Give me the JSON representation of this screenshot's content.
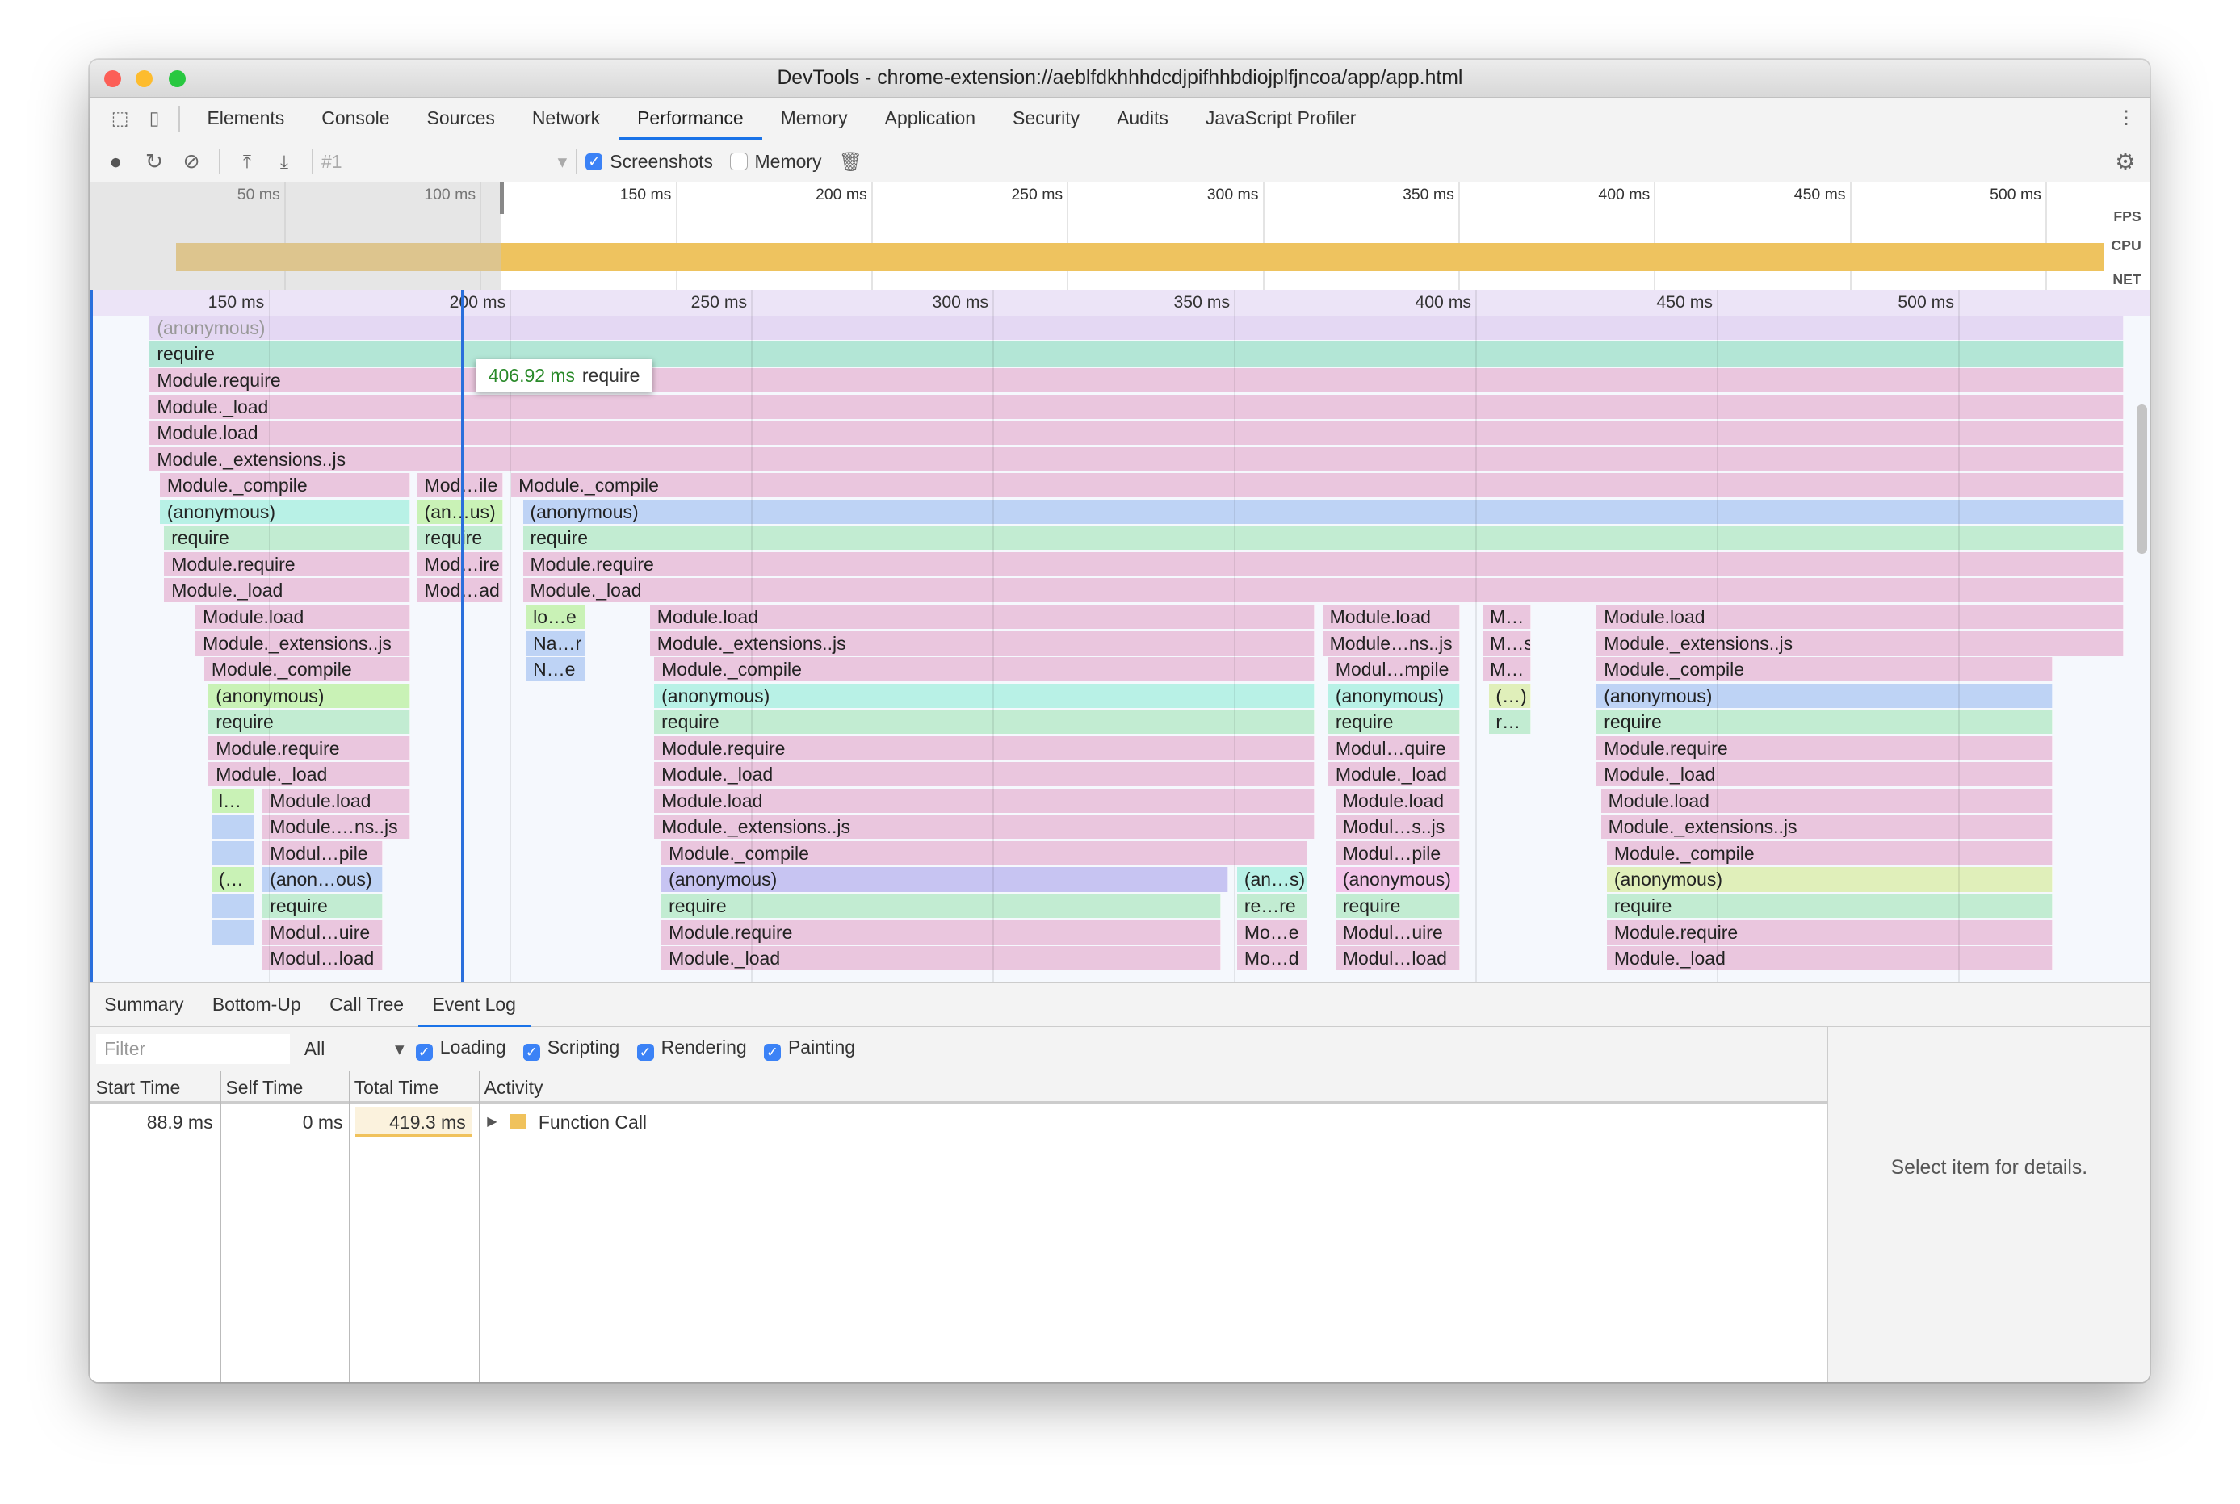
{
  "window": {
    "title": "DevTools - chrome-extension://aeblfdkhhhdcdjpifhhbdiojplfjncoa/app/app.html"
  },
  "tabs": [
    "Elements",
    "Console",
    "Sources",
    "Network",
    "Performance",
    "Memory",
    "Application",
    "Security",
    "Audits",
    "JavaScript Profiler"
  ],
  "active_tab": "Performance",
  "toolbar": {
    "recording": "#1",
    "screenshots_label": "Screenshots",
    "screenshots_checked": true,
    "memory_label": "Memory",
    "memory_checked": false
  },
  "overview": {
    "ticks": [
      "50 ms",
      "100 ms",
      "150 ms",
      "200 ms",
      "250 ms",
      "300 ms",
      "350 ms",
      "400 ms",
      "450 ms",
      "500 ms"
    ],
    "tick_ms": [
      50,
      100,
      150,
      200,
      250,
      300,
      350,
      400,
      450,
      500
    ],
    "lanes": [
      "FPS",
      "CPU",
      "NET"
    ],
    "selection_start_ms": 114,
    "cpu_color": "#eec35f"
  },
  "flame": {
    "ticks": [
      "150 ms",
      "200 ms",
      "250 ms",
      "300 ms",
      "350 ms",
      "400 ms",
      "450 ms",
      "500 ms"
    ],
    "tick_ms": [
      150,
      200,
      250,
      300,
      350,
      400,
      450,
      500
    ],
    "view_ms": [
      114,
      535
    ],
    "cursor": {
      "time": "406.92 ms",
      "name": "require",
      "at_ms": 189.9
    },
    "colors": {
      "pink": "#eac6de",
      "teal": "#b3e6d6",
      "green": "#c2ecd2",
      "cyan": "#b8f1e6",
      "blue": "#bed3f5",
      "lime": "#c9f2b6",
      "purple": "#c7c4f2",
      "magenta": "#f2c3e8",
      "yellow": "#e0efba",
      "faded": "#e4d8f3"
    },
    "rows": [
      [
        [
          "(anonymous)",
          125.4,
          534.3,
          "faded"
        ]
      ],
      [
        [
          "require",
          125.4,
          534.3,
          "teal"
        ]
      ],
      [
        [
          "Module.require",
          125.4,
          534.3,
          "pink"
        ]
      ],
      [
        [
          "Module._load",
          125.4,
          534.3,
          "pink"
        ]
      ],
      [
        [
          "Module.load",
          125.4,
          534.3,
          "pink"
        ]
      ],
      [
        [
          "Module._extensions..js",
          125.4,
          534.3,
          "pink"
        ]
      ],
      [
        [
          "Module._compile",
          127.5,
          179.3,
          "pink"
        ],
        [
          "Mod…ile",
          180.8,
          198.5,
          "pink"
        ],
        [
          "Module._compile",
          200.3,
          534.3,
          "pink"
        ]
      ],
      [
        [
          "(anonymous)",
          127.5,
          179.3,
          "cyan"
        ],
        [
          "(an…us)",
          180.8,
          198.5,
          "lime"
        ],
        [
          "(anonymous)",
          202.7,
          534.3,
          "blue"
        ]
      ],
      [
        [
          "require",
          128.4,
          179.3,
          "green"
        ],
        [
          "require",
          180.8,
          198.5,
          "green"
        ],
        [
          "require",
          202.7,
          534.3,
          "green"
        ]
      ],
      [
        [
          "Module.require",
          128.4,
          179.3,
          "pink"
        ],
        [
          "Mod…ire",
          180.8,
          198.5,
          "pink"
        ],
        [
          "Module.require",
          202.7,
          534.3,
          "pink"
        ]
      ],
      [
        [
          "Module._load",
          128.4,
          179.3,
          "pink"
        ],
        [
          "Mod…ad",
          180.8,
          198.5,
          "pink"
        ],
        [
          "Module._load",
          202.7,
          534.3,
          "pink"
        ]
      ],
      [
        [
          "Module.load",
          134.9,
          179.3,
          "pink"
        ],
        [
          "lo…e",
          203.3,
          215.7,
          "lime"
        ],
        [
          "Module.load",
          229.0,
          366.6,
          "pink"
        ],
        [
          "Module.load",
          368.3,
          396.7,
          "pink"
        ],
        [
          "M…",
          401.5,
          411.5,
          "pink"
        ],
        [
          "Module.load",
          425.1,
          534.3,
          "pink"
        ]
      ],
      [
        [
          "Module._extensions..js",
          134.9,
          179.3,
          "pink"
        ],
        [
          "Na…r",
          203.3,
          215.7,
          "blue"
        ],
        [
          "Module._extensions..js",
          229.0,
          366.6,
          "pink"
        ],
        [
          "Module…ns..js",
          368.3,
          396.7,
          "pink"
        ],
        [
          "M…s",
          401.5,
          411.5,
          "pink"
        ],
        [
          "Module._extensions..js",
          425.1,
          534.3,
          "pink"
        ]
      ],
      [
        [
          "Module._compile",
          136.7,
          179.3,
          "pink"
        ],
        [
          "N…e",
          203.3,
          215.7,
          "blue"
        ],
        [
          "Module._compile",
          229.9,
          366.6,
          "pink"
        ],
        [
          "Modul…mpile",
          369.5,
          396.7,
          "pink"
        ],
        [
          "M…",
          401.5,
          411.5,
          "pink"
        ],
        [
          "Module._compile",
          425.1,
          519.5,
          "pink"
        ]
      ],
      [
        [
          "(anonymous)",
          137.6,
          179.3,
          "lime"
        ],
        [
          "(anonymous)",
          229.9,
          366.6,
          "cyan"
        ],
        [
          "(anonymous)",
          369.5,
          396.7,
          "cyan"
        ],
        [
          "(…)",
          402.7,
          411.5,
          "yellow"
        ],
        [
          "(anonymous)",
          425.1,
          519.5,
          "blue"
        ]
      ],
      [
        [
          "require",
          137.6,
          179.3,
          "green"
        ],
        [
          "require",
          229.9,
          366.6,
          "green"
        ],
        [
          "require",
          369.5,
          396.7,
          "green"
        ],
        [
          "r…",
          402.7,
          411.5,
          "green"
        ],
        [
          "require",
          425.1,
          519.5,
          "green"
        ]
      ],
      [
        [
          "Module.require",
          137.6,
          179.3,
          "pink"
        ],
        [
          "Module.require",
          229.9,
          366.6,
          "pink"
        ],
        [
          "Modul…quire",
          369.5,
          396.7,
          "pink"
        ],
        [
          "Module.require",
          425.1,
          519.5,
          "pink"
        ]
      ],
      [
        [
          "Module._load",
          137.6,
          179.3,
          "pink"
        ],
        [
          "Module._load",
          229.9,
          366.6,
          "pink"
        ],
        [
          "Module._load",
          369.5,
          396.7,
          "pink"
        ],
        [
          "Module._load",
          425.1,
          519.5,
          "pink"
        ]
      ],
      [
        [
          "l…",
          138.2,
          147.0,
          "lime"
        ],
        [
          "Module.load",
          148.8,
          179.3,
          "pink"
        ],
        [
          "Module.load",
          229.9,
          366.6,
          "pink"
        ],
        [
          "Module.load",
          371.0,
          396.7,
          "pink"
        ],
        [
          "Module.load",
          426.0,
          519.5,
          "pink"
        ]
      ],
      [
        [
          "",
          138.2,
          147.0,
          "blue"
        ],
        [
          "Module.…ns..js",
          148.8,
          179.3,
          "pink"
        ],
        [
          "Module._extensions..js",
          229.9,
          366.6,
          "pink"
        ],
        [
          "Modul…s..js",
          371.0,
          396.7,
          "pink"
        ],
        [
          "Module._extensions..js",
          426.0,
          519.5,
          "pink"
        ]
      ],
      [
        [
          "",
          138.2,
          147.0,
          "blue"
        ],
        [
          "Modul…pile",
          148.8,
          173.7,
          "pink"
        ],
        [
          "Module._compile",
          231.4,
          365.1,
          "pink"
        ],
        [
          "Modul…pile",
          371.0,
          396.7,
          "pink"
        ],
        [
          "Module._compile",
          427.2,
          519.5,
          "pink"
        ]
      ],
      [
        [
          "(…",
          138.2,
          147.0,
          "lime"
        ],
        [
          "(anon…ous)",
          148.8,
          173.7,
          "blue"
        ],
        [
          "(anonymous)",
          231.4,
          348.8,
          "purple"
        ],
        [
          "(an…s)",
          350.6,
          365.1,
          "cyan"
        ],
        [
          "(anonymous)",
          371.0,
          396.7,
          "magenta"
        ],
        [
          "(anonymous)",
          427.2,
          519.5,
          "yellow"
        ]
      ],
      [
        [
          "",
          138.2,
          147.0,
          "blue"
        ],
        [
          "require",
          148.8,
          173.7,
          "green"
        ],
        [
          "require",
          231.4,
          347.3,
          "green"
        ],
        [
          "re…re",
          350.6,
          365.1,
          "green"
        ],
        [
          "require",
          371.0,
          396.7,
          "green"
        ],
        [
          "require",
          427.2,
          519.5,
          "green"
        ]
      ],
      [
        [
          "",
          138.2,
          147.0,
          "blue"
        ],
        [
          "Modul…uire",
          148.8,
          173.7,
          "pink"
        ],
        [
          "Module.require",
          231.4,
          347.3,
          "pink"
        ],
        [
          "Mo…e",
          350.6,
          365.1,
          "pink"
        ],
        [
          "Modul…uire",
          371.0,
          396.7,
          "pink"
        ],
        [
          "Module.require",
          427.2,
          519.5,
          "pink"
        ]
      ],
      [
        [
          "Modul…load",
          148.8,
          173.7,
          "pink"
        ],
        [
          "Module._load",
          231.4,
          347.3,
          "pink"
        ],
        [
          "Mo…d",
          350.6,
          365.1,
          "pink"
        ],
        [
          "Modul…load",
          371.0,
          396.7,
          "pink"
        ],
        [
          "Module._load",
          427.2,
          519.5,
          "pink"
        ]
      ]
    ]
  },
  "bottom": {
    "tabs": [
      "Summary",
      "Bottom-Up",
      "Call Tree",
      "Event Log"
    ],
    "active_tab": "Event Log",
    "filter_placeholder": "Filter",
    "filter_select": "All",
    "categories": [
      {
        "label": "Loading",
        "checked": true
      },
      {
        "label": "Scripting",
        "checked": true
      },
      {
        "label": "Rendering",
        "checked": true
      },
      {
        "label": "Painting",
        "checked": true
      }
    ],
    "columns": [
      "Start Time",
      "Self Time",
      "Total Time",
      "Activity"
    ],
    "rows": [
      {
        "start": "88.9 ms",
        "self": "0 ms",
        "total": "419.3 ms",
        "activity": "Function Call",
        "color": "#f0c25c"
      }
    ],
    "details_empty": "Select item for details."
  }
}
